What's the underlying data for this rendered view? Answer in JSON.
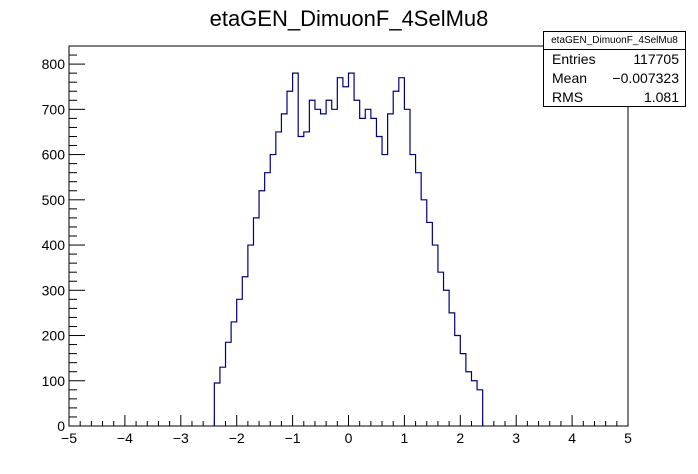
{
  "chart_data": {
    "type": "histogram",
    "title": "etaGEN_DimuonF_4SelMu8",
    "xlabel": "",
    "ylabel": "",
    "xlim": [
      -5,
      5
    ],
    "ylim": [
      0,
      840
    ],
    "x_ticks": [
      -5,
      -4,
      -3,
      -2,
      -1,
      0,
      1,
      2,
      3,
      4,
      5
    ],
    "x_tick_labels": [
      "−5",
      "−4",
      "−3",
      "−2",
      "−1",
      "0",
      "1",
      "2",
      "3",
      "4",
      "5"
    ],
    "y_ticks": [
      0,
      100,
      200,
      300,
      400,
      500,
      600,
      700,
      800
    ],
    "y_tick_labels": [
      "0",
      "100",
      "200",
      "300",
      "400",
      "500",
      "600",
      "700",
      "800"
    ],
    "line_color": "#000080",
    "bin_width": 0.1,
    "bins_x": [
      -2.4,
      -2.3,
      -2.2,
      -2.1,
      -2.0,
      -1.9,
      -1.8,
      -1.7,
      -1.6,
      -1.5,
      -1.4,
      -1.3,
      -1.2,
      -1.1,
      -1.0,
      -0.9,
      -0.8,
      -0.7,
      -0.6,
      -0.5,
      -0.4,
      -0.3,
      -0.2,
      -0.1,
      0.0,
      0.1,
      0.2,
      0.3,
      0.4,
      0.5,
      0.6,
      0.7,
      0.8,
      0.9,
      1.0,
      1.1,
      1.2,
      1.3,
      1.4,
      1.5,
      1.6,
      1.7,
      1.8,
      1.9,
      2.0,
      2.1,
      2.2,
      2.3
    ],
    "bins_y": [
      95,
      130,
      185,
      230,
      280,
      330,
      400,
      460,
      520,
      560,
      600,
      650,
      690,
      740,
      780,
      640,
      650,
      720,
      700,
      690,
      720,
      700,
      770,
      750,
      780,
      720,
      680,
      700,
      680,
      640,
      600,
      690,
      740,
      770,
      700,
      600,
      560,
      500,
      450,
      400,
      340,
      300,
      250,
      200,
      160,
      120,
      100,
      80
    ],
    "stats": {
      "title": "etaGEN_DimuonF_4SelMu8",
      "rows": [
        {
          "label": "Entries",
          "value": "117705"
        },
        {
          "label": "Mean",
          "value": "−0.007323"
        },
        {
          "label": "RMS",
          "value": "1.081"
        }
      ]
    }
  }
}
